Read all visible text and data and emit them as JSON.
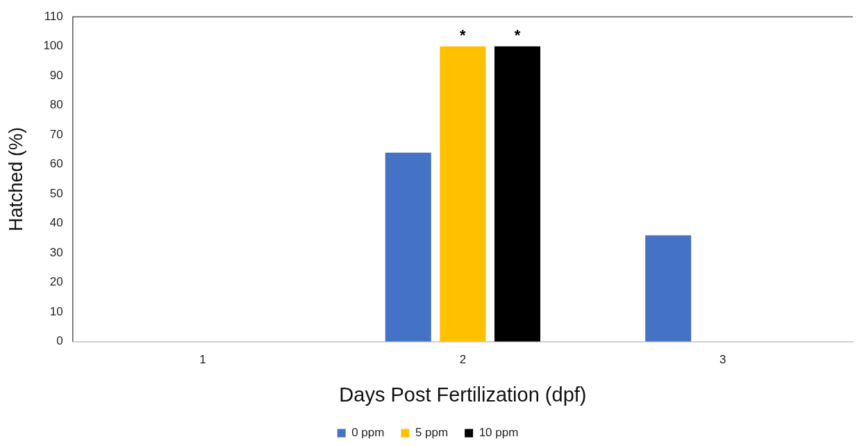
{
  "chart_data": {
    "type": "bar",
    "xlabel": "Days Post Fertilization (dpf)",
    "ylabel": "Hatched (%)",
    "categories": [
      "1",
      "2",
      "3"
    ],
    "series": [
      {
        "name": "0 ppm",
        "color": "#4472c4",
        "values": [
          0,
          64,
          36
        ]
      },
      {
        "name": "5 ppm",
        "color": "#ffc000",
        "values": [
          0,
          100,
          0
        ],
        "value_labels": [
          null,
          "*",
          null
        ]
      },
      {
        "name": "10 ppm",
        "color": "#000000",
        "values": [
          0,
          100,
          0
        ],
        "value_labels": [
          null,
          "*",
          null
        ]
      }
    ],
    "ylim": [
      0,
      110
    ],
    "yticks": [
      0,
      10,
      20,
      30,
      40,
      50,
      60,
      70,
      80,
      90,
      100,
      110
    ],
    "grid": false,
    "legend": "bottom"
  }
}
